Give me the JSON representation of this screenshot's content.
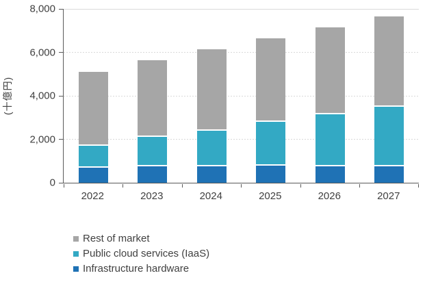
{
  "chart_data": {
    "type": "bar",
    "stacked": true,
    "title": "",
    "categories": [
      "2022",
      "2023",
      "2024",
      "2025",
      "2026",
      "2027"
    ],
    "series": [
      {
        "name": "Infrastructure hardware",
        "color": "#1f72b5",
        "values": [
          700,
          750,
          750,
          800,
          750,
          750
        ]
      },
      {
        "name": "Public cloud services (IaaS)",
        "color": "#33a9c4",
        "values": [
          1000,
          1350,
          1650,
          2000,
          2400,
          2750
        ]
      },
      {
        "name": "Rest of market",
        "color": "#a6a6a6",
        "values": [
          3400,
          3550,
          3750,
          3850,
          4000,
          4150
        ]
      }
    ],
    "totals": [
      5100,
      5650,
      6150,
      6650,
      7150,
      7650
    ],
    "xlabel": "",
    "ylabel": "(十億円)",
    "ylim": [
      0,
      8000
    ],
    "ytick_interval": 2000,
    "yticks": [
      "0",
      "2,000",
      "4,000",
      "6,000",
      "8,000"
    ],
    "grid": "horizontal-dashed",
    "legend_position": "bottom-left",
    "legend_order": [
      "Rest of market",
      "Public cloud services (IaaS)",
      "Infrastructure hardware"
    ]
  },
  "colors": {
    "background": "#ffffff",
    "axis_line": "#595959",
    "gridline": "#d9d9d9",
    "text": "#404040",
    "segment_separator": "#ffffff"
  }
}
